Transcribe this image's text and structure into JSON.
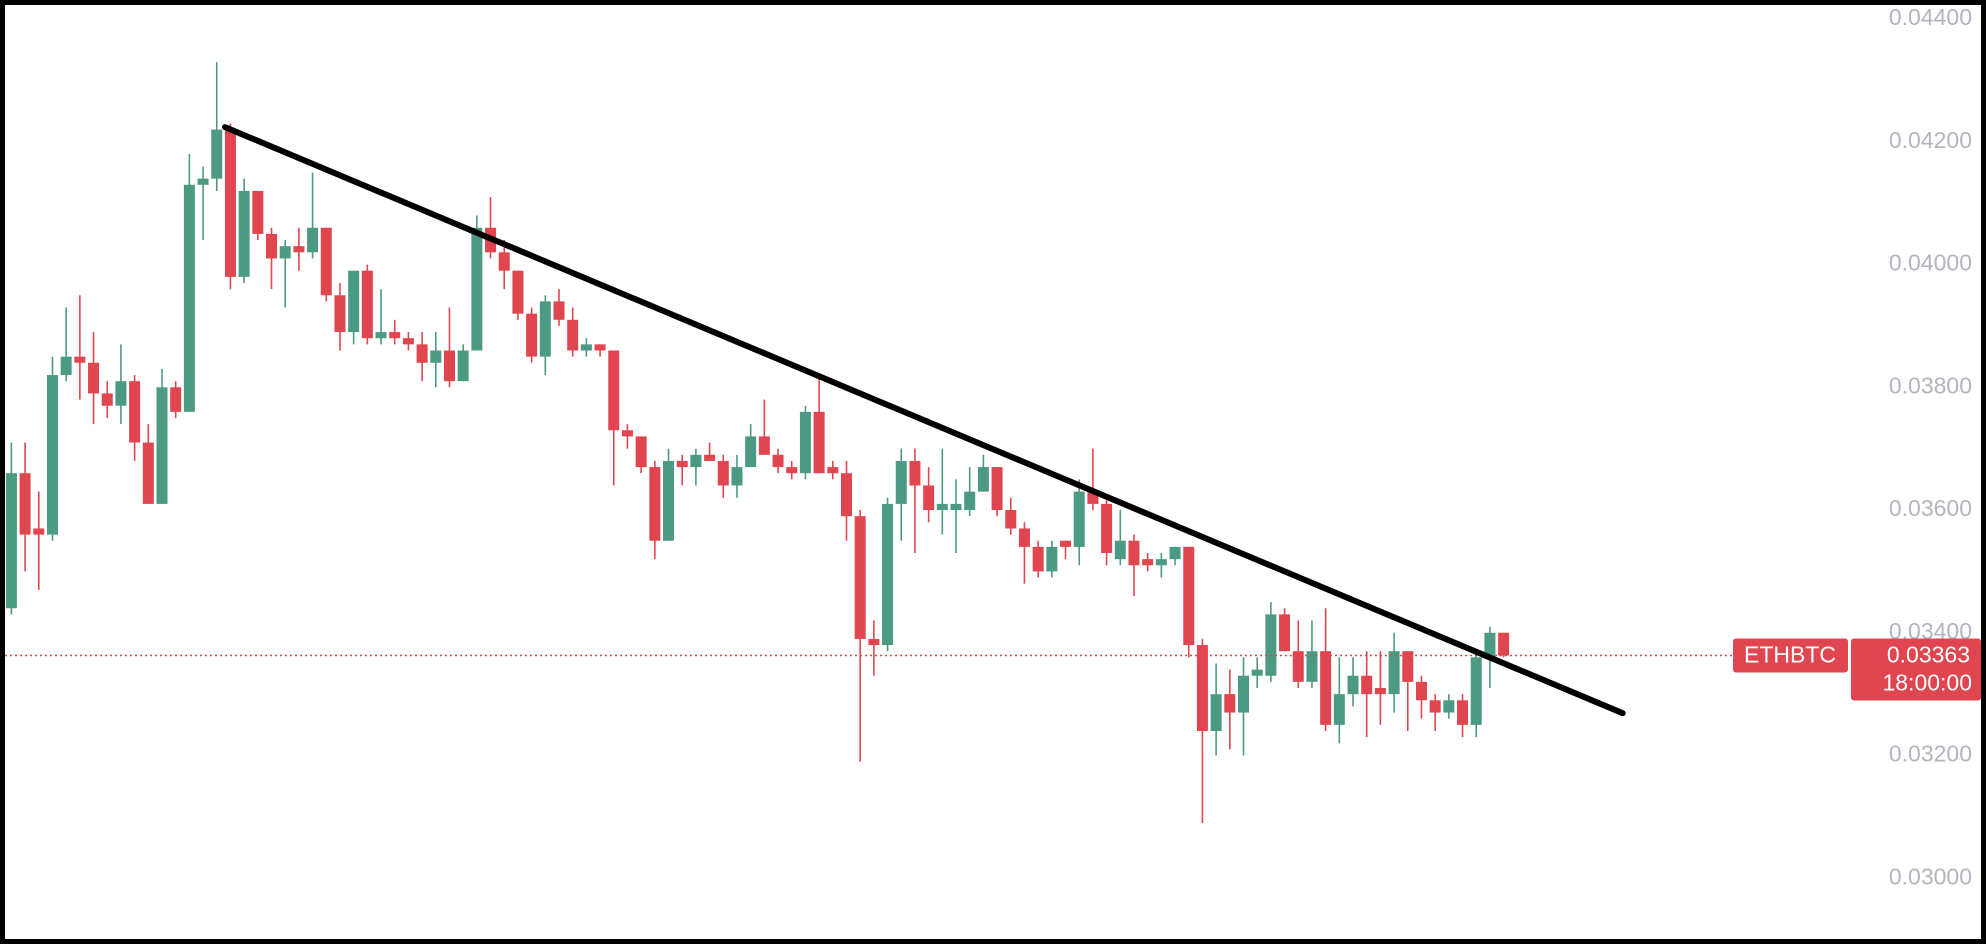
{
  "chart_data": {
    "type": "candlestick",
    "symbol": "ETHBTC",
    "last_price": 0.03363,
    "countdown": "18:00:00",
    "up_color": "#4c9a83",
    "down_color": "#e0464f",
    "trendline_color": "#000000",
    "ylim": [
      0.02901,
      0.04423
    ],
    "yticks": [
      {
        "value": 0.03,
        "label": "0.03000"
      },
      {
        "value": 0.032,
        "label": "0.03200"
      },
      {
        "value": 0.034,
        "label": "0.03400"
      },
      {
        "value": 0.036,
        "label": "0.03600"
      },
      {
        "value": 0.038,
        "label": "0.03800"
      },
      {
        "value": 0.04,
        "label": "0.04000"
      },
      {
        "value": 0.042,
        "label": "0.04200"
      },
      {
        "value": 0.044,
        "label": "0.04400"
      }
    ],
    "open": [
      0.0344,
      0.0366,
      0.0357,
      0.0356,
      0.0382,
      0.0385,
      0.0384,
      0.0379,
      0.0377,
      0.0381,
      0.0371,
      0.0361,
      0.038,
      0.0376,
      0.0413,
      0.0414,
      0.0422,
      0.0398,
      0.0412,
      0.0405,
      0.0401,
      0.0403,
      0.0402,
      0.0406,
      0.0395,
      0.0389,
      0.0399,
      0.0388,
      0.0389,
      0.0388,
      0.0387,
      0.0384,
      0.0386,
      0.0381,
      0.0386,
      0.0406,
      0.0402,
      0.0399,
      0.0392,
      0.0385,
      0.0394,
      0.0391,
      0.0386,
      0.0387,
      0.0386,
      0.0373,
      0.0372,
      0.0367,
      0.0355,
      0.0368,
      0.0367,
      0.0369,
      0.0368,
      0.0364,
      0.0367,
      0.0372,
      0.0369,
      0.0367,
      0.0366,
      0.0376,
      0.0367,
      0.0366,
      0.0359,
      0.0339,
      0.0338,
      0.0361,
      0.0368,
      0.0364,
      0.036,
      0.036,
      0.036,
      0.0363,
      0.0367,
      0.036,
      0.0357,
      0.0354,
      0.035,
      0.0355,
      0.0354,
      0.0363,
      0.0361,
      0.0352,
      0.0355,
      0.0352,
      0.0351,
      0.0352,
      0.0354,
      0.0338,
      0.0324,
      0.033,
      0.0327,
      0.0333,
      0.0333,
      0.0343,
      0.0337,
      0.0332,
      0.0337,
      0.0325,
      0.033,
      0.0333,
      0.0331,
      0.033,
      0.0337,
      0.0332,
      0.0329,
      0.0327,
      0.0329,
      0.0325,
      0.0336,
      0.034
    ],
    "high": [
      0.0371,
      0.0371,
      0.0363,
      0.0385,
      0.0393,
      0.0395,
      0.0389,
      0.0381,
      0.0387,
      0.0382,
      0.0374,
      0.0383,
      0.0381,
      0.0418,
      0.0416,
      0.0433,
      0.0423,
      0.0414,
      0.0412,
      0.0406,
      0.0404,
      0.0406,
      0.0415,
      0.0406,
      0.0397,
      0.0399,
      0.04,
      0.0396,
      0.0391,
      0.0389,
      0.0389,
      0.0389,
      0.0393,
      0.0387,
      0.0408,
      0.0411,
      0.0404,
      0.0399,
      0.0393,
      0.0395,
      0.0396,
      0.0393,
      0.0388,
      0.0387,
      0.0386,
      0.0374,
      0.0372,
      0.0368,
      0.037,
      0.0369,
      0.037,
      0.0371,
      0.0369,
      0.0369,
      0.0374,
      0.0378,
      0.037,
      0.0368,
      0.0377,
      0.0382,
      0.0368,
      0.0368,
      0.036,
      0.0342,
      0.0362,
      0.037,
      0.037,
      0.0367,
      0.037,
      0.0365,
      0.0367,
      0.0369,
      0.0367,
      0.0362,
      0.0358,
      0.0355,
      0.0355,
      0.0355,
      0.0365,
      0.037,
      0.0362,
      0.036,
      0.0356,
      0.0353,
      0.0353,
      0.0354,
      0.0354,
      0.0339,
      0.0335,
      0.0334,
      0.0336,
      0.0336,
      0.0345,
      0.0344,
      0.0342,
      0.0342,
      0.0344,
      0.0336,
      0.0336,
      0.0337,
      0.0337,
      0.034,
      0.0337,
      0.0333,
      0.033,
      0.033,
      0.033,
      0.0337,
      0.0341,
      0.034
    ],
    "low": [
      0.0343,
      0.035,
      0.0347,
      0.0355,
      0.0381,
      0.0378,
      0.0374,
      0.0375,
      0.0374,
      0.0368,
      0.0361,
      0.0361,
      0.0375,
      0.0376,
      0.0404,
      0.0412,
      0.0396,
      0.0397,
      0.0404,
      0.0396,
      0.0393,
      0.0399,
      0.0401,
      0.0394,
      0.0386,
      0.0387,
      0.0387,
      0.0387,
      0.0387,
      0.0386,
      0.0381,
      0.038,
      0.038,
      0.0381,
      0.0386,
      0.0401,
      0.0396,
      0.0391,
      0.0384,
      0.0382,
      0.039,
      0.0385,
      0.0385,
      0.0385,
      0.0364,
      0.037,
      0.0366,
      0.0352,
      0.0355,
      0.0364,
      0.0364,
      0.0368,
      0.0362,
      0.0362,
      0.0367,
      0.0369,
      0.0366,
      0.0365,
      0.0365,
      0.0366,
      0.0365,
      0.0355,
      0.0319,
      0.0333,
      0.0337,
      0.0355,
      0.0353,
      0.0358,
      0.0356,
      0.0353,
      0.0359,
      0.0363,
      0.0359,
      0.0356,
      0.0348,
      0.0349,
      0.0349,
      0.0352,
      0.0351,
      0.036,
      0.0351,
      0.0351,
      0.0346,
      0.035,
      0.0349,
      0.0351,
      0.0336,
      0.0309,
      0.032,
      0.0321,
      0.032,
      0.0331,
      0.0332,
      0.0337,
      0.0331,
      0.0331,
      0.0324,
      0.0322,
      0.0328,
      0.0323,
      0.0325,
      0.0327,
      0.0324,
      0.0326,
      0.0324,
      0.0326,
      0.0323,
      0.0323,
      0.0331,
      0.0336
    ],
    "close": [
      0.0366,
      0.0356,
      0.0356,
      0.0382,
      0.0385,
      0.0384,
      0.0379,
      0.0377,
      0.0381,
      0.0371,
      0.0361,
      0.038,
      0.0376,
      0.0413,
      0.0414,
      0.0422,
      0.0398,
      0.0412,
      0.0405,
      0.0401,
      0.0403,
      0.0402,
      0.0406,
      0.0395,
      0.0389,
      0.0399,
      0.0388,
      0.0389,
      0.0388,
      0.0387,
      0.0384,
      0.0386,
      0.0381,
      0.0386,
      0.0406,
      0.0402,
      0.0399,
      0.0392,
      0.0385,
      0.0394,
      0.0391,
      0.0386,
      0.0387,
      0.0386,
      0.0373,
      0.0372,
      0.0367,
      0.0355,
      0.0368,
      0.0367,
      0.0369,
      0.0368,
      0.0364,
      0.0367,
      0.0372,
      0.0369,
      0.0367,
      0.0366,
      0.0376,
      0.0366,
      0.0366,
      0.0359,
      0.0339,
      0.0338,
      0.0361,
      0.0368,
      0.0364,
      0.036,
      0.0361,
      0.0361,
      0.0363,
      0.0367,
      0.036,
      0.0357,
      0.0354,
      0.035,
      0.0354,
      0.0354,
      0.0363,
      0.0361,
      0.0353,
      0.0355,
      0.0351,
      0.0351,
      0.0352,
      0.0354,
      0.0338,
      0.0324,
      0.033,
      0.0327,
      0.0333,
      0.0334,
      0.0343,
      0.0337,
      0.0332,
      0.0337,
      0.0325,
      0.033,
      0.0333,
      0.033,
      0.033,
      0.0337,
      0.0332,
      0.0329,
      0.0327,
      0.0329,
      0.0325,
      0.0336,
      0.034,
      0.03363
    ],
    "trendline": {
      "x": [
        15.6,
        117.7
      ],
      "y": [
        0.04224,
        0.03269
      ]
    }
  }
}
